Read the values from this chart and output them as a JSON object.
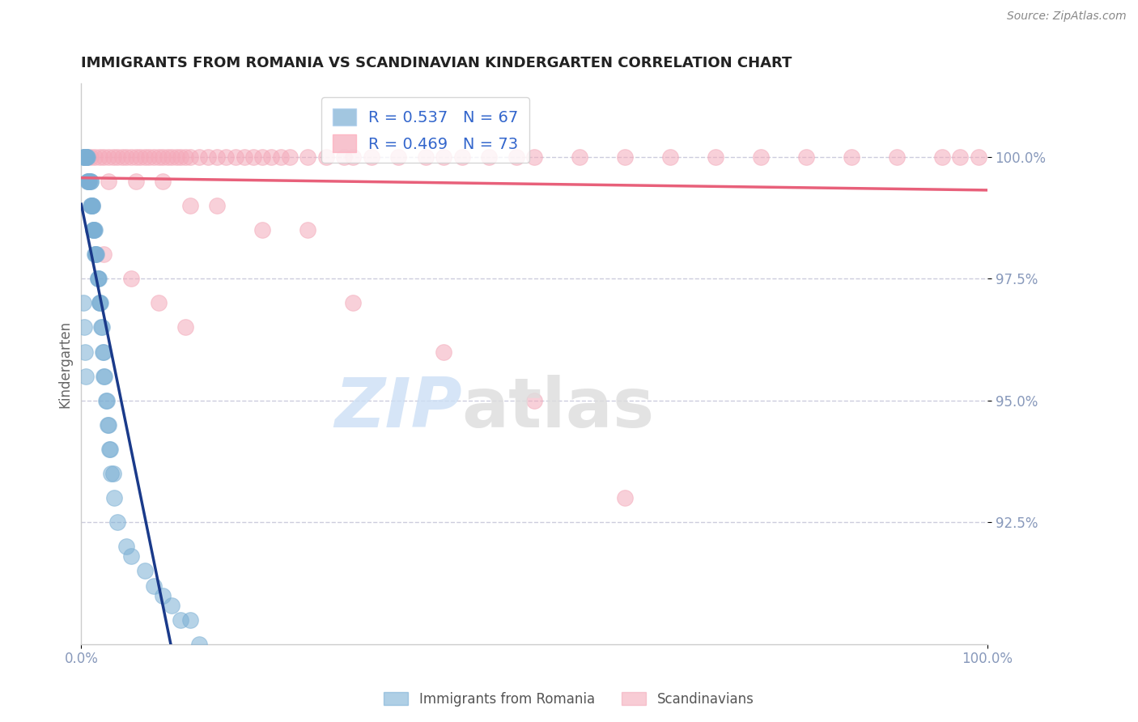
{
  "title": "IMMIGRANTS FROM ROMANIA VS SCANDINAVIAN KINDERGARTEN CORRELATION CHART",
  "source": "Source: ZipAtlas.com",
  "ylabel": "Kindergarten",
  "yticks": [
    92.5,
    95.0,
    97.5,
    100.0
  ],
  "ytick_labels": [
    "92.5%",
    "95.0%",
    "97.5%",
    "100.0%"
  ],
  "xlim": [
    0,
    100
  ],
  "ylim": [
    90.0,
    101.5
  ],
  "legend_label1": "Immigrants from Romania",
  "legend_label2": "Scandinavians",
  "R1": 0.537,
  "N1": 67,
  "R2": 0.469,
  "N2": 73,
  "blue_color": "#7BAFD4",
  "pink_color": "#F4AABA",
  "blue_line_color": "#1A3A8A",
  "pink_line_color": "#E8607A",
  "axis_color": "#8899BB",
  "grid_color": "#CCCCDD",
  "blue_x": [
    0.2,
    0.3,
    0.3,
    0.4,
    0.4,
    0.5,
    0.5,
    0.5,
    0.6,
    0.6,
    0.7,
    0.7,
    0.8,
    0.8,
    0.9,
    0.9,
    1.0,
    1.0,
    1.0,
    1.1,
    1.1,
    1.2,
    1.2,
    1.3,
    1.3,
    1.4,
    1.4,
    1.5,
    1.5,
    1.6,
    1.6,
    1.7,
    1.8,
    1.8,
    1.9,
    2.0,
    2.0,
    2.1,
    2.2,
    2.3,
    2.4,
    2.5,
    2.5,
    2.6,
    2.7,
    2.8,
    2.9,
    3.0,
    3.1,
    3.2,
    3.3,
    3.5,
    3.6,
    4.0,
    5.0,
    5.5,
    7.0,
    8.0,
    9.0,
    10.0,
    11.0,
    12.0,
    13.0,
    0.2,
    0.3,
    0.4,
    0.5
  ],
  "blue_y": [
    100.0,
    100.0,
    100.0,
    100.0,
    100.0,
    100.0,
    100.0,
    100.0,
    100.0,
    100.0,
    100.0,
    99.5,
    99.5,
    99.5,
    99.5,
    99.5,
    99.5,
    99.5,
    99.0,
    99.0,
    99.0,
    99.0,
    99.0,
    98.5,
    98.5,
    98.5,
    98.5,
    98.5,
    98.0,
    98.0,
    98.0,
    98.0,
    97.5,
    97.5,
    97.5,
    97.0,
    97.0,
    97.0,
    96.5,
    96.5,
    96.0,
    96.0,
    95.5,
    95.5,
    95.0,
    95.0,
    94.5,
    94.5,
    94.0,
    94.0,
    93.5,
    93.5,
    93.0,
    92.5,
    92.0,
    91.8,
    91.5,
    91.2,
    91.0,
    90.8,
    90.5,
    90.5,
    90.0,
    97.0,
    96.5,
    96.0,
    95.5
  ],
  "pink_x": [
    0.5,
    1.0,
    1.5,
    2.0,
    2.5,
    3.0,
    3.5,
    4.0,
    4.5,
    5.0,
    5.5,
    6.0,
    6.5,
    7.0,
    7.5,
    8.0,
    8.5,
    9.0,
    9.5,
    10.0,
    10.5,
    11.0,
    11.5,
    12.0,
    13.0,
    14.0,
    15.0,
    16.0,
    17.0,
    18.0,
    19.0,
    20.0,
    21.0,
    22.0,
    23.0,
    25.0,
    27.0,
    29.0,
    30.0,
    32.0,
    35.0,
    38.0,
    40.0,
    42.0,
    45.0,
    48.0,
    50.0,
    55.0,
    60.0,
    65.0,
    70.0,
    75.0,
    80.0,
    85.0,
    90.0,
    95.0,
    97.0,
    99.0,
    3.0,
    6.0,
    9.0,
    12.0,
    15.0,
    20.0,
    25.0,
    2.5,
    5.5,
    8.5,
    11.5,
    30.0,
    40.0,
    50.0,
    60.0
  ],
  "pink_y": [
    100.0,
    100.0,
    100.0,
    100.0,
    100.0,
    100.0,
    100.0,
    100.0,
    100.0,
    100.0,
    100.0,
    100.0,
    100.0,
    100.0,
    100.0,
    100.0,
    100.0,
    100.0,
    100.0,
    100.0,
    100.0,
    100.0,
    100.0,
    100.0,
    100.0,
    100.0,
    100.0,
    100.0,
    100.0,
    100.0,
    100.0,
    100.0,
    100.0,
    100.0,
    100.0,
    100.0,
    100.0,
    100.0,
    100.0,
    100.0,
    100.0,
    100.0,
    100.0,
    100.0,
    100.0,
    100.0,
    100.0,
    100.0,
    100.0,
    100.0,
    100.0,
    100.0,
    100.0,
    100.0,
    100.0,
    100.0,
    100.0,
    100.0,
    99.5,
    99.5,
    99.5,
    99.0,
    99.0,
    98.5,
    98.5,
    98.0,
    97.5,
    97.0,
    96.5,
    97.0,
    96.0,
    95.0,
    93.0
  ]
}
